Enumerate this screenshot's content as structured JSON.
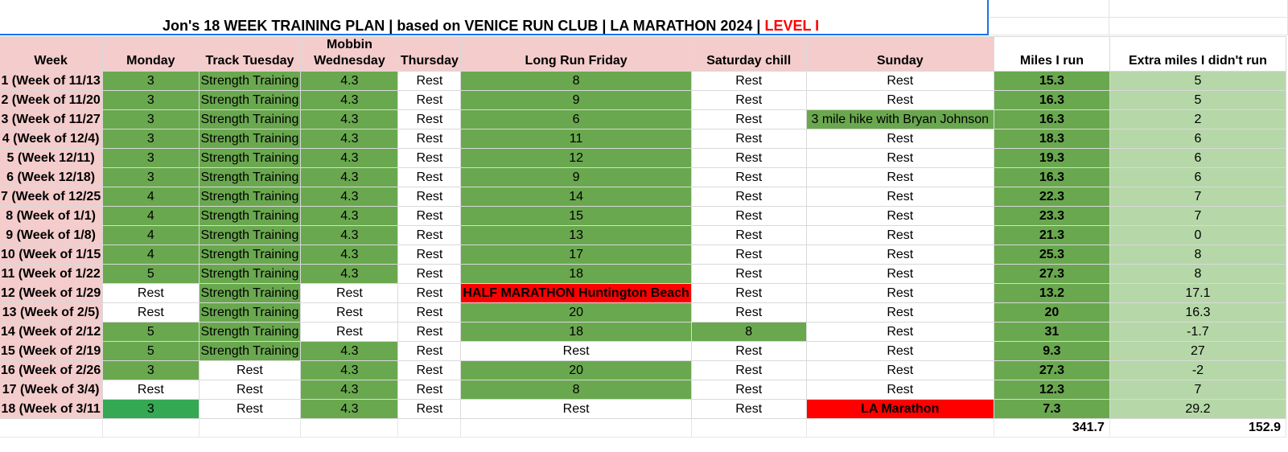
{
  "title": {
    "main": "Jon's 18 WEEK TRAINING PLAN | based on VENICE RUN CLUB | LA MARATHON 2024 | ",
    "level": "LEVEL I"
  },
  "headers": {
    "week": "Week",
    "monday": "Monday",
    "tuesday": "Track Tuesday",
    "wednesday_line1": "Mobbin",
    "wednesday_line2": "Wednesday",
    "thursday": "Thursday",
    "friday": "Long Run Friday",
    "saturday": "Saturday chill",
    "sunday": "Sunday",
    "miles": "Miles I  run",
    "extra": "Extra miles I didn't run"
  },
  "rows": [
    {
      "week": "1 (Week of 11/13",
      "mon": "3",
      "tue": "Strength Training",
      "wed": "4.3",
      "thu": "Rest",
      "fri": "8",
      "sat": "Rest",
      "sun": "Rest",
      "miles": "15.3",
      "extra": "5"
    },
    {
      "week": "2 (Week of 11/20",
      "mon": "3",
      "tue": "Strength Training",
      "wed": "4.3",
      "thu": "Rest",
      "fri": "9",
      "sat": "Rest",
      "sun": "Rest",
      "miles": "16.3",
      "extra": "5"
    },
    {
      "week": "3 (Week of 11/27",
      "mon": "3",
      "tue": "Strength Training",
      "wed": "4.3",
      "thu": "Rest",
      "fri": "6",
      "sat": "Rest",
      "sun": "3 mile hike with Bryan Johnson",
      "miles": "16.3",
      "extra": "2"
    },
    {
      "week": "4 (Week of 12/4)",
      "mon": "3",
      "tue": "Strength Training",
      "wed": "4.3",
      "thu": "Rest",
      "fri": "11",
      "sat": "Rest",
      "sun": "Rest",
      "miles": "18.3",
      "extra": "6"
    },
    {
      "week": "5 (Week 12/11)",
      "mon": "3",
      "tue": "Strength Training",
      "wed": "4.3",
      "thu": "Rest",
      "fri": "12",
      "sat": "Rest",
      "sun": "Rest",
      "miles": "19.3",
      "extra": "6"
    },
    {
      "week": "6 (Week 12/18)",
      "mon": "3",
      "tue": "Strength Training",
      "wed": "4.3",
      "thu": "Rest",
      "fri": "9",
      "sat": "Rest",
      "sun": "Rest",
      "miles": "16.3",
      "extra": "6"
    },
    {
      "week": "7 (Week of 12/25",
      "mon": "4",
      "tue": "Strength Training",
      "wed": "4.3",
      "thu": "Rest",
      "fri": "14",
      "sat": "Rest",
      "sun": "Rest",
      "miles": "22.3",
      "extra": "7"
    },
    {
      "week": "8 (Week of 1/1)",
      "mon": "4",
      "tue": "Strength Training",
      "wed": "4.3",
      "thu": "Rest",
      "fri": "15",
      "sat": "Rest",
      "sun": "Rest",
      "miles": "23.3",
      "extra": "7"
    },
    {
      "week": "9 (Week of 1/8)",
      "mon": "4",
      "tue": "Strength Training",
      "wed": "4.3",
      "thu": "Rest",
      "fri": "13",
      "sat": "Rest",
      "sun": "Rest",
      "miles": "21.3",
      "extra": "0"
    },
    {
      "week": "10 (Week of 1/15",
      "mon": "4",
      "tue": "Strength Training",
      "wed": "4.3",
      "thu": "Rest",
      "fri": "17",
      "sat": "Rest",
      "sun": "Rest",
      "miles": "25.3",
      "extra": "8"
    },
    {
      "week": "11 (Week of 1/22",
      "mon": "5",
      "tue": "Strength Training",
      "wed": "4.3",
      "thu": "Rest",
      "fri": "18",
      "sat": "Rest",
      "sun": "Rest",
      "miles": "27.3",
      "extra": "8"
    },
    {
      "week": "12 (Week of 1/29",
      "mon": "Rest",
      "tue": "Strength Training",
      "wed": "Rest",
      "thu": "Rest",
      "fri": "HALF MARATHON Huntington Beach",
      "sat": "Rest",
      "sun": "Rest",
      "miles": "13.2",
      "extra": "17.1"
    },
    {
      "week": "13 (Week of 2/5)",
      "mon": "Rest",
      "tue": "Strength Training",
      "wed": "Rest",
      "thu": "Rest",
      "fri": "20",
      "sat": "Rest",
      "sun": "Rest",
      "miles": "20",
      "extra": "16.3"
    },
    {
      "week": "14 (Week of 2/12",
      "mon": "5",
      "tue": "Strength Training",
      "wed": "Rest",
      "thu": "Rest",
      "fri": "18",
      "sat": "8",
      "sun": "Rest",
      "miles": "31",
      "extra": "-1.7"
    },
    {
      "week": "15 (Week of 2/19",
      "mon": "5",
      "tue": "Strength Training",
      "wed": "4.3",
      "thu": "Rest",
      "fri": "Rest",
      "sat": "Rest",
      "sun": "Rest",
      "miles": "9.3",
      "extra": "27"
    },
    {
      "week": "16 (Week of 2/26",
      "mon": "3",
      "tue": "Rest",
      "wed": "4.3",
      "thu": "Rest",
      "fri": "20",
      "sat": "Rest",
      "sun": "Rest",
      "miles": "27.3",
      "extra": "-2"
    },
    {
      "week": "17 (Week of 3/4)",
      "mon": "Rest",
      "tue": "Rest",
      "wed": "4.3",
      "thu": "Rest",
      "fri": "8",
      "sat": "Rest",
      "sun": "Rest",
      "miles": "12.3",
      "extra": "7"
    },
    {
      "week": "18 (Week of 3/11",
      "mon": "3",
      "tue": "Rest",
      "wed": "4.3",
      "thu": "Rest",
      "fri": "Rest",
      "sat": "Rest",
      "sun": "LA Marathon",
      "miles": "7.3",
      "extra": "29.2"
    }
  ],
  "totals": {
    "miles": "341.7",
    "extra": "152.9"
  },
  "colors": {
    "header_pink": "#f4cccc",
    "green": "#6aa84f",
    "bright_green": "#34a853",
    "light_green": "#b6d7a8",
    "red": "#ff0000",
    "selection_blue": "#1a73e8"
  }
}
